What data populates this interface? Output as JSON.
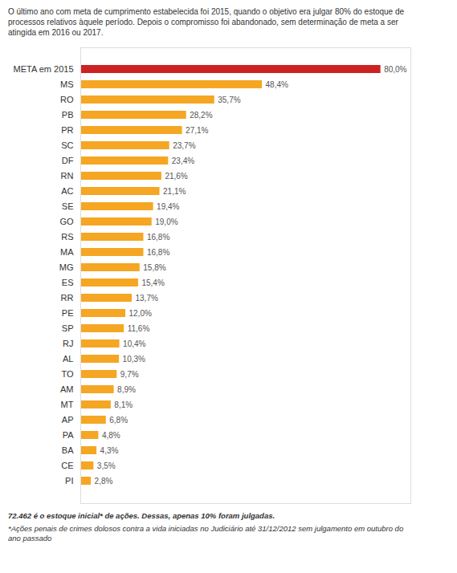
{
  "chart_data": {
    "type": "bar",
    "orientation": "horizontal",
    "title": "O último ano com meta de cumprimento estabelecida foi 2015, quando o objetivo era julgar 80% do estoque de\nprocessos relativos àquele período. Depois o compromisso foi abandonado, sem determinação de meta a ser\natingida em 2016 ou 2017.",
    "annotations": [
      "72.462 é o estoque inicial* de ações. Dessas, apenas 10% foram julgadas.",
      "*Ações penais de crimes dolosos contra a vida iniciadas no Judiciário até 31/12/2012 sem julgamento em outubro do\nano passado"
    ],
    "categories": [
      "META em 2015",
      "MS",
      "RO",
      "PB",
      "PR",
      "SC",
      "DF",
      "RN",
      "AC",
      "SE",
      "GO",
      "RS",
      "MA",
      "MG",
      "ES",
      "RR",
      "PE",
      "SP",
      "RJ",
      "AL",
      "TO",
      "AM",
      "MT",
      "AP",
      "PA",
      "BA",
      "CE",
      "PI"
    ],
    "values": [
      80.0,
      48.4,
      35.7,
      28.2,
      27.1,
      23.7,
      23.4,
      21.6,
      21.1,
      19.4,
      19.0,
      16.8,
      16.8,
      15.8,
      15.4,
      13.7,
      12.0,
      11.6,
      10.4,
      10.3,
      9.7,
      8.9,
      8.1,
      6.8,
      4.8,
      4.3,
      3.5,
      2.8
    ],
    "value_labels": [
      "80,0%",
      "48,4%",
      "35,7%",
      "28,2%",
      "27,1%",
      "23,7%",
      "23,4%",
      "21,6%",
      "21,1%",
      "19,4%",
      "19,0%",
      "16,8%",
      "16,8%",
      "15,8%",
      "15,4%",
      "13,7%",
      "12,0%",
      "11,6%",
      "10,4%",
      "10,3%",
      "9,7%",
      "8,9%",
      "8,1%",
      "6,8%",
      "4,8%",
      "4,3%",
      "3,5%",
      "2,8%"
    ],
    "colors": [
      "#cc2222",
      "#f5a623",
      "#f5a623",
      "#f5a623",
      "#f5a623",
      "#f5a623",
      "#f5a623",
      "#f5a623",
      "#f5a623",
      "#f5a623",
      "#f5a623",
      "#f5a623",
      "#f5a623",
      "#f5a623",
      "#f5a623",
      "#f5a623",
      "#f5a623",
      "#f5a623",
      "#f5a623",
      "#f5a623",
      "#f5a623",
      "#f5a623",
      "#f5a623",
      "#f5a623",
      "#f5a623",
      "#f5a623",
      "#f5a623",
      "#f5a623"
    ],
    "xlim": [
      0,
      88
    ],
    "grid": false,
    "data_labels": true,
    "tick_labels": "y"
  }
}
